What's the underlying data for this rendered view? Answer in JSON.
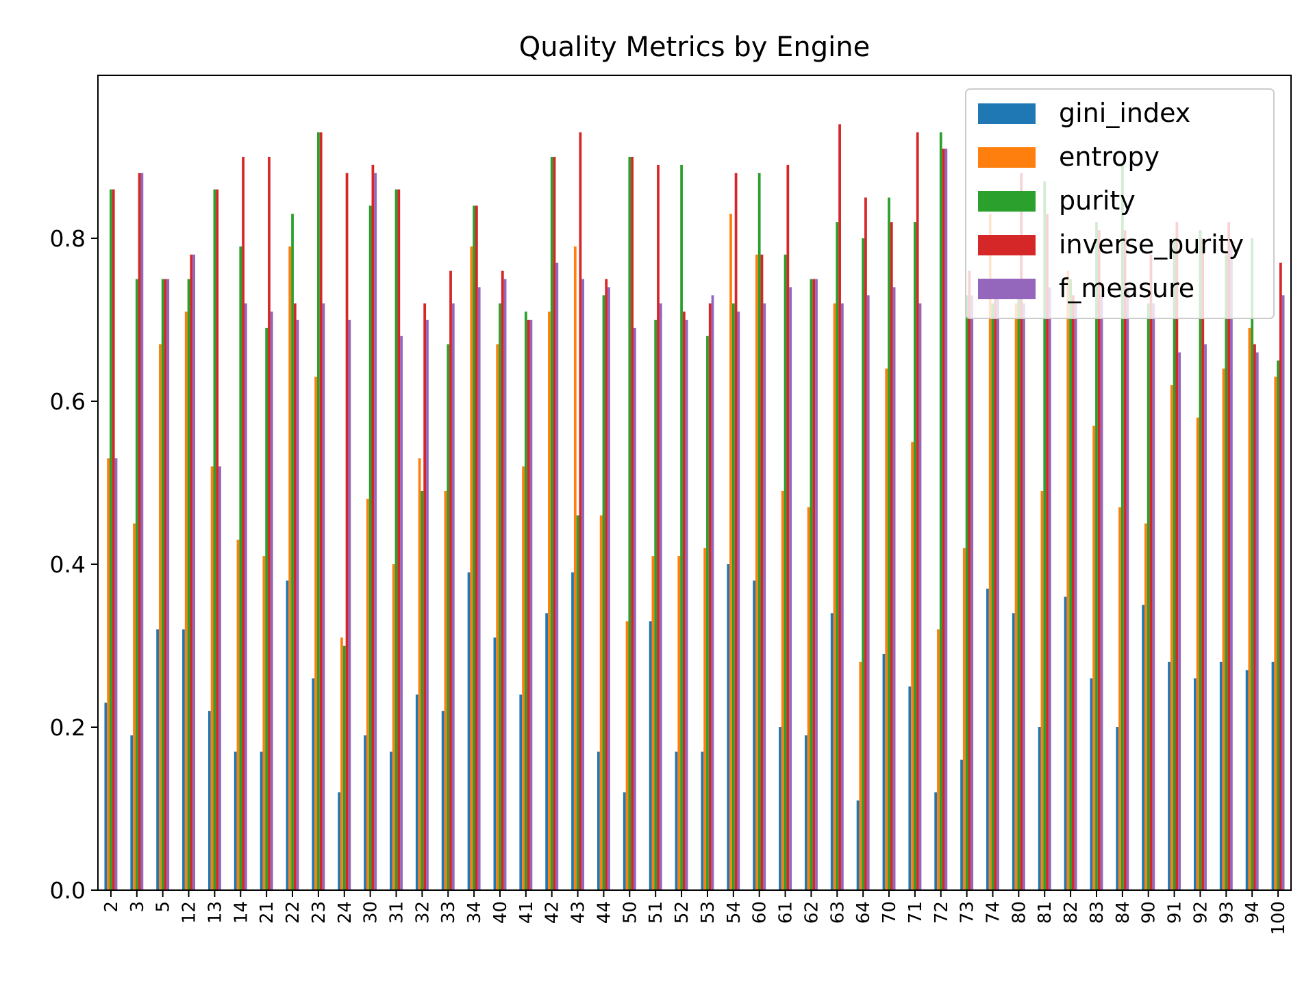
{
  "chart_data": {
    "type": "bar",
    "title": "Quality Metrics by Engine",
    "xlabel": "",
    "ylabel": "",
    "ylim": [
      0,
      1.0
    ],
    "yticks": [
      "0.0",
      "0.2",
      "0.4",
      "0.6",
      "0.8"
    ],
    "legend_position": "top-right",
    "grid": false,
    "categories": [
      "2",
      "3",
      "5",
      "12",
      "13",
      "14",
      "21",
      "22",
      "23",
      "24",
      "30",
      "31",
      "32",
      "33",
      "34",
      "40",
      "41",
      "42",
      "43",
      "44",
      "50",
      "51",
      "52",
      "53",
      "54",
      "60",
      "61",
      "62",
      "63",
      "64",
      "70",
      "71",
      "72",
      "73",
      "74",
      "80",
      "81",
      "82",
      "83",
      "84",
      "90",
      "91",
      "92",
      "93",
      "94",
      "100"
    ],
    "series": [
      {
        "name": "gini_index",
        "color": "#1f77b4",
        "values": [
          0.23,
          0.19,
          0.32,
          0.32,
          0.22,
          0.17,
          0.17,
          0.38,
          0.26,
          0.12,
          0.19,
          0.17,
          0.24,
          0.22,
          0.39,
          0.31,
          0.24,
          0.34,
          0.39,
          0.17,
          0.12,
          0.33,
          0.17,
          0.17,
          0.4,
          0.38,
          0.2,
          0.19,
          0.34,
          0.11,
          0.29,
          0.25,
          0.12,
          0.16,
          0.37,
          0.34,
          0.2,
          0.36,
          0.26,
          0.2,
          0.35,
          0.28,
          0.26,
          0.28,
          0.27,
          0.28
        ]
      },
      {
        "name": "entropy",
        "color": "#ff7f0e",
        "values": [
          0.53,
          0.45,
          0.67,
          0.71,
          0.52,
          0.43,
          0.41,
          0.79,
          0.63,
          0.31,
          0.48,
          0.4,
          0.53,
          0.49,
          0.79,
          0.67,
          0.52,
          0.71,
          0.79,
          0.46,
          0.33,
          0.41,
          0.41,
          0.42,
          0.83,
          0.78,
          0.49,
          0.47,
          0.72,
          0.28,
          0.64,
          0.55,
          0.32,
          0.42,
          0.83,
          0.72,
          0.49,
          0.76,
          0.57,
          0.47,
          0.45,
          0.62,
          0.58,
          0.64,
          0.69,
          0.63
        ]
      },
      {
        "name": "purity",
        "color": "#2ca02c",
        "values": [
          0.86,
          0.75,
          0.75,
          0.75,
          0.86,
          0.79,
          0.69,
          0.83,
          0.93,
          0.3,
          0.84,
          0.86,
          0.49,
          0.67,
          0.84,
          0.72,
          0.71,
          0.9,
          0.46,
          0.73,
          0.9,
          0.7,
          0.89,
          0.68,
          0.72,
          0.88,
          0.78,
          0.75,
          0.82,
          0.8,
          0.85,
          0.82,
          0.93,
          0.73,
          0.72,
          0.75,
          0.87,
          0.75,
          0.82,
          0.89,
          0.72,
          0.8,
          0.81,
          0.78,
          0.8,
          0.65
        ]
      },
      {
        "name": "inverse_purity",
        "color": "#d62728",
        "values": [
          0.86,
          0.88,
          0.75,
          0.78,
          0.86,
          0.9,
          0.9,
          0.72,
          0.93,
          0.88,
          0.89,
          0.86,
          0.72,
          0.76,
          0.84,
          0.76,
          0.7,
          0.9,
          0.93,
          0.75,
          0.9,
          0.89,
          0.71,
          0.72,
          0.88,
          0.78,
          0.89,
          0.75,
          0.94,
          0.85,
          0.82,
          0.93,
          0.91,
          0.76,
          0.74,
          0.88,
          0.83,
          0.73,
          0.81,
          0.81,
          0.78,
          0.82,
          0.8,
          0.82,
          0.67,
          0.77
        ]
      },
      {
        "name": "f_measure",
        "color": "#9467bd",
        "values": [
          0.53,
          0.88,
          0.75,
          0.78,
          0.52,
          0.72,
          0.71,
          0.7,
          0.72,
          0.7,
          0.88,
          0.68,
          0.7,
          0.72,
          0.74,
          0.75,
          0.7,
          0.77,
          0.75,
          0.74,
          0.69,
          0.72,
          0.7,
          0.73,
          0.71,
          0.72,
          0.74,
          0.75,
          0.72,
          0.73,
          0.74,
          0.72,
          0.91,
          0.73,
          0.74,
          0.72,
          0.74,
          0.72,
          0.73,
          0.74,
          0.72,
          0.66,
          0.67,
          0.79,
          0.66,
          0.73
        ]
      }
    ]
  }
}
